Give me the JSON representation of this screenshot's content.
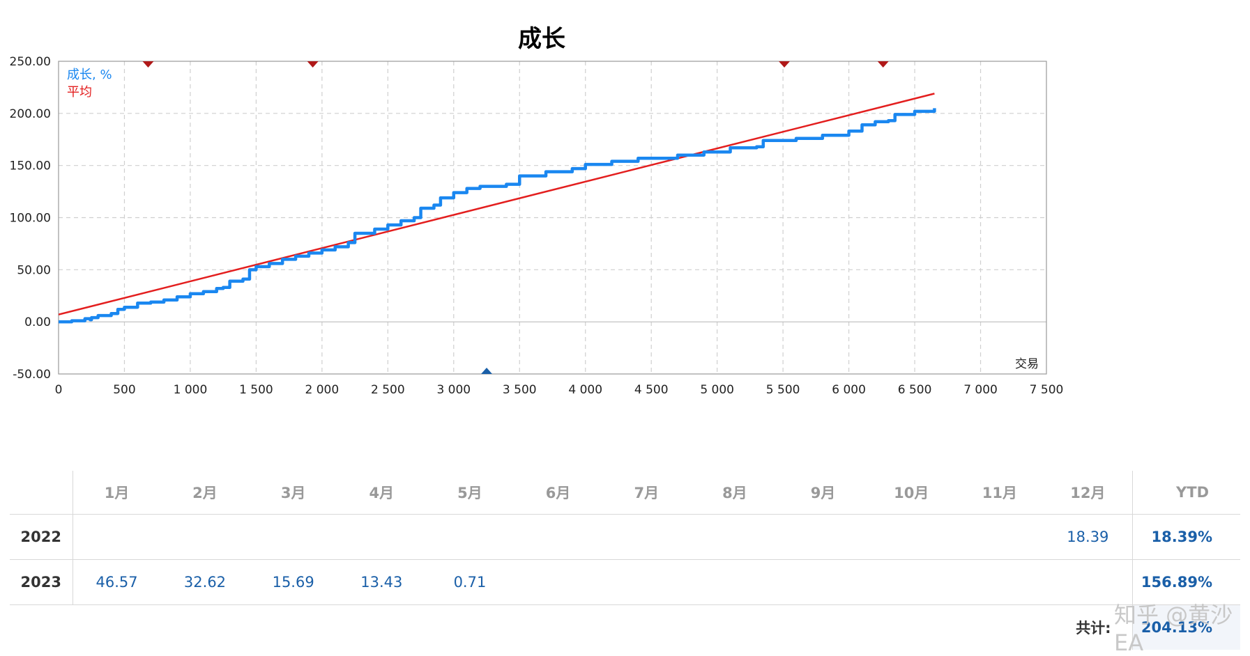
{
  "chart_data": {
    "type": "line",
    "title": "成长",
    "xlabel": "交易",
    "xlim": [
      0,
      7500
    ],
    "ylim": [
      -50,
      250
    ],
    "x_ticks": [
      "0",
      "500",
      "1 000",
      "1 500",
      "2 000",
      "2 500",
      "3 000",
      "3 500",
      "4 000",
      "4 500",
      "5 000",
      "5 500",
      "6 000",
      "6 500",
      "7 000",
      "7 500"
    ],
    "y_ticks": [
      "250.00",
      "200.00",
      "150.00",
      "100.00",
      "50.00",
      "0.00",
      "-50.00"
    ],
    "grid": true,
    "legend_position": "top-left",
    "series": [
      {
        "name": "成长, %",
        "color": "#1a87f0",
        "points": [
          [
            0,
            0
          ],
          [
            100,
            1
          ],
          [
            200,
            3
          ],
          [
            240,
            2
          ],
          [
            250,
            4
          ],
          [
            300,
            6
          ],
          [
            400,
            8
          ],
          [
            450,
            12
          ],
          [
            500,
            14
          ],
          [
            600,
            18
          ],
          [
            700,
            19
          ],
          [
            800,
            21
          ],
          [
            900,
            24
          ],
          [
            1000,
            27
          ],
          [
            1100,
            29
          ],
          [
            1200,
            32
          ],
          [
            1250,
            33
          ],
          [
            1300,
            39
          ],
          [
            1400,
            41
          ],
          [
            1450,
            50
          ],
          [
            1500,
            53
          ],
          [
            1600,
            56
          ],
          [
            1700,
            60
          ],
          [
            1800,
            63
          ],
          [
            1900,
            66
          ],
          [
            2000,
            69
          ],
          [
            2100,
            72
          ],
          [
            2200,
            76
          ],
          [
            2250,
            85
          ],
          [
            2400,
            89
          ],
          [
            2500,
            93
          ],
          [
            2600,
            97
          ],
          [
            2700,
            100
          ],
          [
            2750,
            109
          ],
          [
            2850,
            112
          ],
          [
            2900,
            119
          ],
          [
            3000,
            124
          ],
          [
            3100,
            128
          ],
          [
            3200,
            130
          ],
          [
            3400,
            132
          ],
          [
            3500,
            140
          ],
          [
            3700,
            144
          ],
          [
            3900,
            147
          ],
          [
            4000,
            151
          ],
          [
            4200,
            154
          ],
          [
            4400,
            157
          ],
          [
            4700,
            160
          ],
          [
            4900,
            163
          ],
          [
            5100,
            167
          ],
          [
            5300,
            168
          ],
          [
            5350,
            174
          ],
          [
            5600,
            176
          ],
          [
            5800,
            179
          ],
          [
            6000,
            183
          ],
          [
            6100,
            189
          ],
          [
            6200,
            192
          ],
          [
            6300,
            193
          ],
          [
            6350,
            199
          ],
          [
            6500,
            202
          ],
          [
            6650,
            205
          ]
        ]
      },
      {
        "name": "平均",
        "color": "#e31e1e",
        "points": [
          [
            0,
            7
          ],
          [
            6650,
            219
          ]
        ]
      }
    ],
    "markers_top": [
      680,
      1930,
      5510,
      6260
    ],
    "markers_bottom": [
      3250
    ]
  },
  "table": {
    "months": [
      "1月",
      "2月",
      "3月",
      "4月",
      "5月",
      "6月",
      "7月",
      "8月",
      "9月",
      "10月",
      "11月",
      "12月"
    ],
    "ytd_label": "YTD",
    "rows": [
      {
        "year": "2022",
        "values": [
          "",
          "",
          "",
          "",
          "",
          "",
          "",
          "",
          "",
          "",
          "",
          "18.39"
        ],
        "ytd": "18.39%"
      },
      {
        "year": "2023",
        "values": [
          "46.57",
          "32.62",
          "15.69",
          "13.43",
          "0.71",
          "",
          "",
          "",
          "",
          "",
          "",
          ""
        ],
        "ytd": "156.89%"
      }
    ],
    "total_label": "共计:",
    "total_value": "204.13%"
  },
  "watermark": "知乎 @黄沙EA"
}
